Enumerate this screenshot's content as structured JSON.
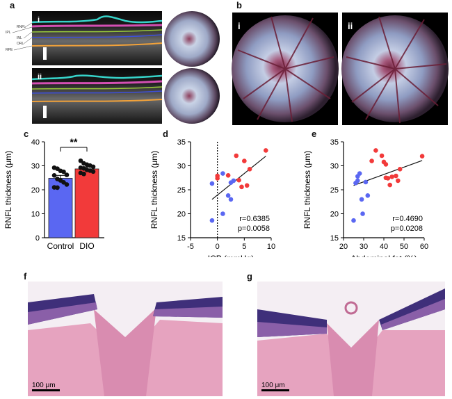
{
  "panel_letters": {
    "a": "a",
    "b": "b",
    "c": "c",
    "d": "d",
    "e": "e",
    "f": "f",
    "g": "g"
  },
  "panel_a": {
    "oct_rows": [
      {
        "numeral": "i",
        "layer_labels": [
          "RNFL",
          "IPL",
          "INL",
          "ORL",
          "RPE"
        ]
      },
      {
        "numeral": "ii"
      }
    ],
    "fundus_colors": {
      "rim": "#2c1f2e",
      "center": "#9a4a66",
      "pale": "#c9d3e6"
    }
  },
  "panel_b": {
    "numerals": [
      "i",
      "ii"
    ]
  },
  "panel_c": {
    "scale_bar_label": "100 μm"
  },
  "histology": {
    "f": {
      "scale_bar_label": "100 μm"
    },
    "g": {
      "scale_bar_label": "100 μm"
    },
    "colors": {
      "stroma": "#e6a3bf",
      "retina_dark": "#3f2f7a",
      "retina_mid": "#8a5fa8",
      "bg": "#f4eef3"
    }
  },
  "chart_data": [
    {
      "id": "c",
      "type": "bar",
      "categories": [
        "Control",
        "DIO"
      ],
      "values": [
        24.8,
        28.7
      ],
      "errors": [
        1.2,
        0.8
      ],
      "bar_colors": [
        "#5a67f2",
        "#f23a3a"
      ],
      "points": [
        [
          29.2,
          28.8,
          27.9,
          27.5,
          26.2,
          26.0,
          24.5,
          23.9,
          23.1,
          22.2,
          21.0,
          20.9
        ],
        [
          32.1,
          31.0,
          30.5,
          30.1,
          29.6,
          29.2,
          28.9,
          28.3,
          28.0,
          27.6,
          27.0,
          26.6
        ]
      ],
      "ylabel": "RNFL thickness (μm)",
      "ylim": [
        0,
        40
      ],
      "yticks": [
        0,
        10,
        20,
        30,
        40
      ],
      "significance": "**"
    },
    {
      "id": "d",
      "type": "scatter",
      "xlabel": "ICP (mmHg)",
      "ylabel": "RNFL thickness (μm)",
      "xlim": [
        -5,
        10
      ],
      "ylim": [
        15,
        35
      ],
      "xticks": [
        -5,
        0,
        5,
        10
      ],
      "yticks": [
        15,
        20,
        25,
        30,
        35
      ],
      "series": [
        {
          "color": "#5a67f2",
          "points": [
            [
              -1,
              26.3
            ],
            [
              -1,
              18.6
            ],
            [
              1,
              20.0
            ],
            [
              1,
              28.4
            ],
            [
              2,
              23.8
            ],
            [
              2.5,
              26.5
            ],
            [
              2.5,
              23.0
            ],
            [
              3,
              26.9
            ]
          ]
        },
        {
          "color": "#f23a3a",
          "points": [
            [
              0,
              27.9
            ],
            [
              0,
              27.4
            ],
            [
              2,
              28.0
            ],
            [
              3.5,
              32.1
            ],
            [
              4,
              27.0
            ],
            [
              4.5,
              25.6
            ],
            [
              5,
              31.0
            ],
            [
              5.5,
              25.9
            ],
            [
              6,
              29.3
            ],
            [
              9,
              33.2
            ]
          ]
        }
      ],
      "fit": {
        "x": [
          -1,
          9
        ],
        "y": [
          23.0,
          32.0
        ]
      },
      "vline_x": 0,
      "annotation": [
        "r=0.6385",
        "p=0.0058"
      ]
    },
    {
      "id": "e",
      "type": "scatter",
      "xlabel": "Abdominal fat (%)",
      "ylabel": "RNFL thickness (μm)",
      "xlim": [
        20,
        60
      ],
      "ylim": [
        15,
        35
      ],
      "xticks": [
        20,
        30,
        40,
        50,
        60
      ],
      "yticks": [
        15,
        20,
        25,
        30,
        35
      ],
      "series": [
        {
          "color": "#5a67f2",
          "points": [
            [
              25,
              18.6
            ],
            [
              26,
              26.4
            ],
            [
              27,
              27.8
            ],
            [
              27,
              26.9
            ],
            [
              28,
              28.4
            ],
            [
              29,
              23.0
            ],
            [
              29.5,
              20.0
            ],
            [
              31,
              26.6
            ],
            [
              32,
              23.8
            ]
          ]
        },
        {
          "color": "#f23a3a",
          "points": [
            [
              34,
              31.0
            ],
            [
              36,
              33.2
            ],
            [
              39,
              32.1
            ],
            [
              40,
              30.8
            ],
            [
              41,
              27.5
            ],
            [
              41,
              30.3
            ],
            [
              42,
              27.4
            ],
            [
              43,
              26.0
            ],
            [
              44,
              27.7
            ],
            [
              46,
              27.9
            ],
            [
              47,
              26.9
            ],
            [
              48,
              29.3
            ],
            [
              59,
              32.0
            ]
          ]
        }
      ],
      "fit": {
        "x": [
          25,
          59
        ],
        "y": [
          25.9,
          31.1
        ]
      },
      "annotation": [
        "r=0.4690",
        "p=0.0208"
      ]
    }
  ]
}
